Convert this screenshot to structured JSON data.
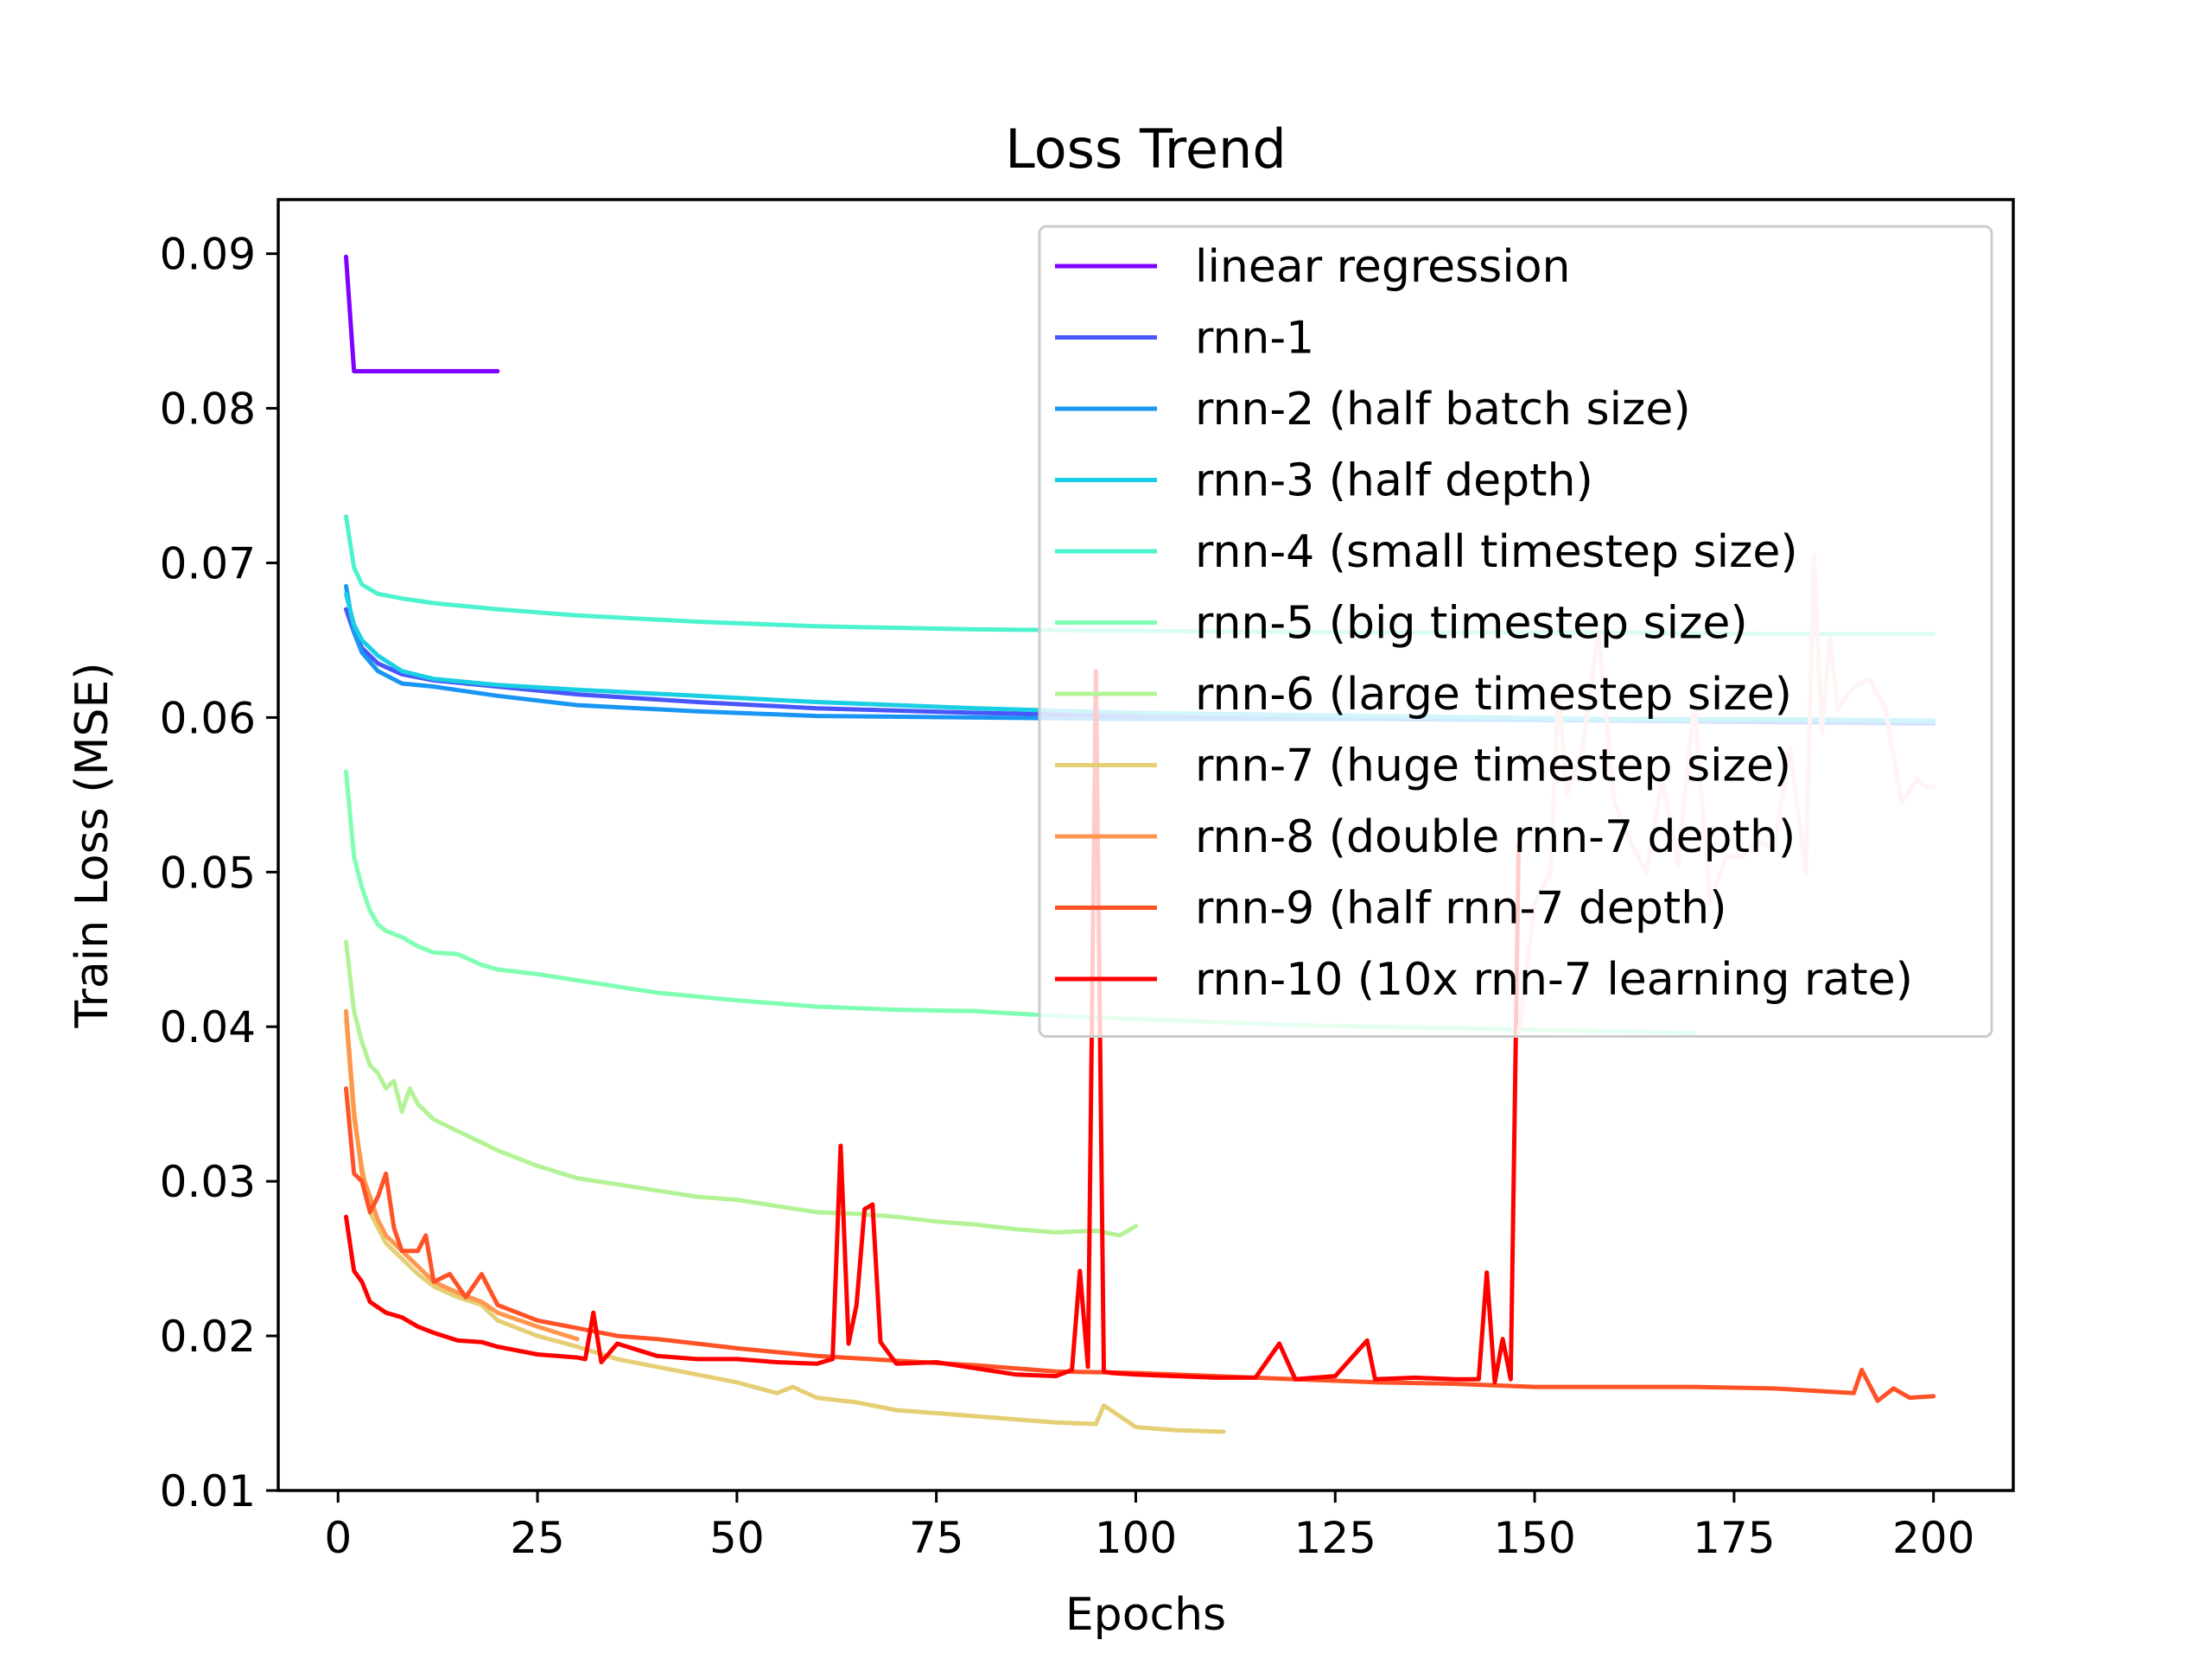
{
  "chart_data": {
    "type": "line",
    "title": "Loss Trend",
    "xlabel": "Epochs",
    "ylabel": "Train Loss (MSE)",
    "xlim": [
      -7.5,
      210
    ],
    "ylim": [
      0.01,
      0.0935
    ],
    "xticks": [
      0,
      25,
      50,
      75,
      100,
      125,
      150,
      175,
      200
    ],
    "xtick_labels": [
      "0",
      "25",
      "50",
      "75",
      "100",
      "125",
      "150",
      "175",
      "200"
    ],
    "yticks": [
      0.01,
      0.02,
      0.03,
      0.04,
      0.05,
      0.06,
      0.07,
      0.08,
      0.09
    ],
    "ytick_labels": [
      "0.01",
      "0.02",
      "0.03",
      "0.04",
      "0.05",
      "0.06",
      "0.07",
      "0.08",
      "0.09"
    ],
    "grid": false,
    "legend_position": "top-right",
    "series": [
      {
        "name": "linear regression",
        "color": "#8000ff",
        "x": [
          1,
          2,
          20
        ],
        "y": [
          0.0898,
          0.0824,
          0.0824
        ]
      },
      {
        "name": "rnn-1",
        "color": "#4856fb",
        "x": [
          1,
          2,
          3,
          5,
          8,
          12,
          20,
          30,
          45,
          60,
          80,
          100,
          130,
          160,
          180,
          200
        ],
        "y": [
          0.067,
          0.0655,
          0.0645,
          0.0635,
          0.0628,
          0.0624,
          0.062,
          0.0615,
          0.061,
          0.0606,
          0.0603,
          0.0601,
          0.06,
          0.0598,
          0.0597,
          0.0596
        ]
      },
      {
        "name": "rnn-2 (half batch size)",
        "color": "#1996f3",
        "x": [
          1,
          2,
          3,
          5,
          8,
          12,
          20,
          30,
          45,
          60,
          80,
          100,
          130,
          160,
          180,
          200
        ],
        "y": [
          0.0685,
          0.0655,
          0.0642,
          0.063,
          0.0622,
          0.062,
          0.0614,
          0.0608,
          0.0604,
          0.0601,
          0.06,
          0.0599,
          0.0599,
          0.0598,
          0.0598,
          0.0597
        ]
      },
      {
        "name": "rnn-3 (half depth)",
        "color": "#1acee3",
        "x": [
          1,
          2,
          3,
          5,
          8,
          12,
          20,
          30,
          45,
          60,
          80,
          100,
          130,
          160,
          180,
          200
        ],
        "y": [
          0.068,
          0.066,
          0.065,
          0.064,
          0.063,
          0.0625,
          0.0621,
          0.0618,
          0.0614,
          0.061,
          0.0606,
          0.0603,
          0.0601,
          0.0599,
          0.0599,
          0.0598
        ]
      },
      {
        "name": "rnn-4 (small timestep size)",
        "color": "#4df3ce",
        "x": [
          1,
          2,
          3,
          5,
          8,
          12,
          20,
          30,
          45,
          60,
          80,
          100,
          130,
          160,
          180,
          200
        ],
        "y": [
          0.073,
          0.0697,
          0.0686,
          0.068,
          0.0677,
          0.0674,
          0.067,
          0.0666,
          0.0662,
          0.0659,
          0.0657,
          0.0656,
          0.0655,
          0.0655,
          0.0654,
          0.0654
        ]
      },
      {
        "name": "rnn-5 (big timestep size)",
        "color": "#80ffb4",
        "x": [
          1,
          2,
          3,
          4,
          5,
          6,
          8,
          10,
          12,
          15,
          18,
          20,
          25,
          30,
          40,
          50,
          60,
          70,
          80,
          90,
          100,
          110,
          120,
          130,
          140,
          150,
          160,
          170
        ],
        "y": [
          0.0565,
          0.051,
          0.049,
          0.0475,
          0.0466,
          0.0462,
          0.0458,
          0.0452,
          0.0448,
          0.0447,
          0.044,
          0.0437,
          0.0434,
          0.043,
          0.0422,
          0.0417,
          0.0413,
          0.0411,
          0.041,
          0.0407,
          0.0405,
          0.0403,
          0.0401,
          0.04,
          0.0399,
          0.0398,
          0.0397,
          0.0396
        ]
      },
      {
        "name": "rnn-6 (large timestep size)",
        "color": "#b3f396",
        "x": [
          1,
          2,
          3,
          4,
          5,
          6,
          7,
          8,
          9,
          10,
          12,
          14,
          16,
          18,
          20,
          25,
          30,
          35,
          40,
          45,
          50,
          55,
          60,
          65,
          70,
          75,
          80,
          85,
          90,
          95,
          98,
          100
        ],
        "y": [
          0.0455,
          0.041,
          0.039,
          0.0375,
          0.037,
          0.036,
          0.0365,
          0.0345,
          0.036,
          0.035,
          0.034,
          0.0335,
          0.033,
          0.0325,
          0.032,
          0.031,
          0.0302,
          0.0298,
          0.0294,
          0.029,
          0.0288,
          0.0284,
          0.028,
          0.0279,
          0.0277,
          0.0274,
          0.0272,
          0.0269,
          0.0267,
          0.0268,
          0.0265,
          0.0271
        ]
      },
      {
        "name": "rnn-7 (huge timestep size)",
        "color": "#e6ce74",
        "x": [
          1,
          2,
          3,
          4,
          5,
          6,
          7,
          8,
          10,
          12,
          15,
          18,
          20,
          25,
          30,
          35,
          40,
          45,
          50,
          55,
          57,
          60,
          65,
          70,
          75,
          80,
          85,
          90,
          95,
          96,
          100,
          105,
          111
        ],
        "y": [
          0.0405,
          0.034,
          0.031,
          0.028,
          0.027,
          0.026,
          0.0255,
          0.025,
          0.024,
          0.0232,
          0.0225,
          0.022,
          0.021,
          0.02,
          0.0193,
          0.0185,
          0.018,
          0.0175,
          0.017,
          0.0163,
          0.0167,
          0.016,
          0.0157,
          0.0152,
          0.015,
          0.0148,
          0.0146,
          0.0144,
          0.0143,
          0.0155,
          0.0141,
          0.0139,
          0.0138
        ]
      },
      {
        "name": "rnn-8 (double rnn-7 depth)",
        "color": "#ff964d",
        "x": [
          1,
          2,
          3,
          4,
          5,
          6,
          8,
          10,
          12,
          15,
          18,
          20,
          25,
          30
        ],
        "y": [
          0.041,
          0.0345,
          0.0305,
          0.029,
          0.0275,
          0.0265,
          0.0255,
          0.0245,
          0.0235,
          0.0228,
          0.0222,
          0.0215,
          0.0206,
          0.0198
        ]
      },
      {
        "name": "rnn-9 (half rnn-7 depth)",
        "color": "#ff5226",
        "x": [
          1,
          2,
          3,
          4,
          5,
          6,
          7,
          8,
          10,
          11,
          12,
          14,
          16,
          18,
          20,
          25,
          30,
          35,
          40,
          45,
          50,
          60,
          70,
          80,
          90,
          100,
          110,
          120,
          130,
          140,
          150,
          160,
          170,
          180,
          190,
          191,
          193,
          195,
          197,
          200
        ],
        "y": [
          0.036,
          0.0305,
          0.03,
          0.028,
          0.029,
          0.0305,
          0.027,
          0.0255,
          0.0255,
          0.0265,
          0.0235,
          0.024,
          0.0225,
          0.024,
          0.022,
          0.021,
          0.0205,
          0.02,
          0.0198,
          0.0195,
          0.0192,
          0.0187,
          0.0184,
          0.0181,
          0.0177,
          0.0176,
          0.0174,
          0.0172,
          0.017,
          0.0169,
          0.0167,
          0.0167,
          0.0167,
          0.0166,
          0.0163,
          0.0178,
          0.0158,
          0.0166,
          0.016,
          0.0161
        ]
      },
      {
        "name": "rnn-10 (10x rnn-7 learning rate)",
        "color": "#ff0000",
        "x": [
          1,
          2,
          3,
          4,
          6,
          8,
          10,
          12,
          15,
          18,
          20,
          25,
          30,
          31,
          32,
          33,
          35,
          40,
          45,
          50,
          55,
          60,
          62,
          63,
          64,
          65,
          66,
          67,
          68,
          70,
          75,
          80,
          85,
          90,
          92,
          93,
          94,
          95,
          96,
          97,
          100,
          105,
          110,
          115,
          118,
          120,
          125,
          129,
          130,
          135,
          140,
          143,
          144,
          145,
          146,
          147,
          148
        ],
        "y": [
          0.0277,
          0.0242,
          0.0235,
          0.0222,
          0.0215,
          0.0212,
          0.0206,
          0.0202,
          0.0197,
          0.0196,
          0.0193,
          0.0188,
          0.0186,
          0.0185,
          0.0215,
          0.0183,
          0.0195,
          0.0187,
          0.0185,
          0.0185,
          0.0183,
          0.0182,
          0.0185,
          0.0323,
          0.0195,
          0.022,
          0.0282,
          0.0285,
          0.0196,
          0.0182,
          0.0183,
          0.0179,
          0.0175,
          0.0174,
          0.0178,
          0.0242,
          0.018,
          0.063,
          0.0177,
          0.0176,
          0.0175,
          0.0174,
          0.0173,
          0.0173,
          0.0195,
          0.0172,
          0.0174,
          0.0197,
          0.0172,
          0.0173,
          0.0172,
          0.0172,
          0.0241,
          0.017,
          0.0198,
          0.0172,
          0.0518
        ]
      },
      {
        "name": "",
        "color": "#ffc4c4",
        "x": [
          148,
          150,
          152,
          153,
          154,
          156,
          158,
          160,
          162,
          164,
          166,
          168,
          170,
          172,
          174,
          176,
          178,
          180,
          182,
          184,
          185,
          186,
          187,
          188,
          190,
          192,
          194,
          196,
          198,
          199,
          200
        ],
        "y": [
          0.0395,
          0.048,
          0.05,
          0.062,
          0.055,
          0.058,
          0.0655,
          0.0545,
          0.052,
          0.05,
          0.056,
          0.0505,
          0.061,
          0.048,
          0.051,
          0.051,
          0.052,
          0.0515,
          0.058,
          0.05,
          0.0705,
          0.059,
          0.0652,
          0.0605,
          0.062,
          0.0625,
          0.0605,
          0.0545,
          0.056,
          0.0555,
          0.0555
        ]
      }
    ]
  }
}
